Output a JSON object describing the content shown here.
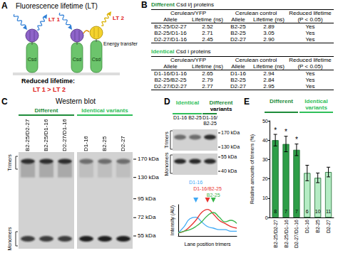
{
  "figure": {
    "A": {
      "letter": "A",
      "title": "Fluorescence lifetime (LT)",
      "lifetime_labels": [
        "LT 1",
        "LT 2"
      ],
      "energy_label": "Energy transfer",
      "protein_label": "Csd",
      "caption": "Reduced lifetime:",
      "comparison": "LT 1 > LT 2"
    },
    "B": {
      "letter": "B",
      "column_groups": [
        "Cerulean/YFP",
        "Cerulean control",
        "Reduced lifetime (P < 0.05)"
      ],
      "subheads": [
        "Allele",
        "Lifetime (ns)",
        "Allele",
        "Lifetime (ns)"
      ],
      "tables": [
        {
          "highlight": "Different",
          "title": "Csd i/j proteins",
          "color": "#1e8c3a",
          "rows": [
            [
              "B2-25/D2-27",
              "2.52",
              "B2-25",
              "2.89",
              "Yes"
            ],
            [
              "B2-25/D1-16",
              "2.71",
              "B2-25",
              "3.05",
              "Yes"
            ],
            [
              "D2-27/D1-16",
              "2.45",
              "D2-27",
              "2.90",
              "Yes"
            ]
          ]
        },
        {
          "highlight": "Identical",
          "title": "Csd i proteins",
          "color": "#2fbf5a",
          "rows": [
            [
              "D1-16/D1-16",
              "2.65",
              "D1-16",
              "2.94",
              "Yes"
            ],
            [
              "B2-25/B2-25",
              "2.79",
              "B2-25",
              "2.84",
              "Yes"
            ],
            [
              "D2-27/D2-27",
              "2.77",
              "D2-27",
              "2.95",
              "Yes"
            ]
          ]
        }
      ]
    },
    "C": {
      "letter": "C",
      "title": "Western blot",
      "groups": [
        {
          "text": "Different",
          "color": "#1e8c3a",
          "lanes": [
            "B2-25/D2-27",
            "B2-25/D1-16",
            "D2-27/D1-16"
          ]
        },
        {
          "text": "Identical variants",
          "color": "#2fbf5a",
          "lanes": [
            "D1-16",
            "B2-25",
            "D2-27"
          ]
        }
      ],
      "band_labels": [
        "Trimers",
        "Monomers"
      ],
      "markers": [
        {
          "value": 170,
          "label": "170 kDa"
        },
        {
          "value": 130,
          "label": "130 kDa"
        },
        {
          "value": 95,
          "label": "95 kDa"
        },
        {
          "value": 72,
          "label": "72 kDa"
        },
        {
          "value": 55,
          "label": "55 kDa"
        }
      ]
    },
    "D": {
      "letter": "D",
      "groups": [
        {
          "text": "Identical",
          "color": "#2fbf5a",
          "lanes": [
            "D1-16",
            "B2-25"
          ]
        },
        {
          "text": "Different",
          "color": "#1e8c3a",
          "lanes": [
            "D1-16/B2-25"
          ]
        }
      ],
      "suffix": "variants",
      "band_labels": [
        "Trimers",
        "Monomers"
      ],
      "trimer_markers": [
        {
          "value": 170,
          "label": "170 kDa"
        },
        {
          "value": 130,
          "label": "130 kDa"
        }
      ],
      "monomer_markers": [
        {
          "value": 55,
          "label": "55 kDa"
        },
        {
          "value": 40,
          "label": "40 kDa"
        }
      ]
    },
    "E": {
      "letter": "E",
      "groups": [
        {
          "text": "Different",
          "color": "#1e8c3a",
          "count": 3
        },
        {
          "text": "Identical variants",
          "color": "#2fbf5a",
          "count": 3
        }
      ]
    }
  },
  "chart_data": [
    {
      "type": "line",
      "x_label": "Lane position trimers",
      "y_label": "Intensity (AU)",
      "x": [
        0,
        1,
        2,
        3,
        4,
        5,
        6,
        7,
        8,
        9,
        10
      ],
      "xlim": [
        0,
        10
      ],
      "ylim": [
        0,
        10
      ],
      "tick_labels": false,
      "grid": false,
      "marker": "triangle",
      "series": [
        {
          "name": "D1-16",
          "color": "#3fa9f5",
          "values": [
            1,
            3,
            5.5,
            6,
            4.5,
            3,
            2.5,
            2,
            2,
            1.5,
            1.5
          ]
        },
        {
          "name": "D1-16/B2-25",
          "color": "#e8322e",
          "values": [
            1,
            1.5,
            3,
            5,
            7.5,
            8.5,
            7,
            5,
            4,
            3,
            2.5
          ]
        },
        {
          "name": "B2-25",
          "color": "#39b54a",
          "values": [
            1,
            1.5,
            2,
            3,
            4.5,
            6.5,
            7.5,
            6,
            4.5,
            5,
            4
          ]
        }
      ]
    },
    {
      "type": "bar",
      "y_label": "Relative amounts of trimers (%)",
      "categories": [
        "B2-25/D2-27",
        "B2-25/D1-16",
        "D2-27/D1-16",
        "D1-16",
        "B2-25",
        "D2-27"
      ],
      "values": [
        40,
        38,
        35,
        23,
        20.5,
        23.5
      ],
      "errors": [
        3,
        4,
        3,
        4,
        2.5,
        2.5
      ],
      "n": [
        8,
        7,
        7,
        6,
        10,
        11
      ],
      "annotations": [
        "*",
        "*",
        "*",
        null,
        null,
        null
      ],
      "colors": [
        "#2e9e48",
        "#2e9e48",
        "#2e9e48",
        "#b5ecc4",
        "#b5ecc4",
        "#b5ecc4"
      ],
      "ylim": [
        0,
        50
      ],
      "yticks": [
        0,
        10,
        20,
        30,
        40,
        50
      ],
      "grid": false
    }
  ]
}
